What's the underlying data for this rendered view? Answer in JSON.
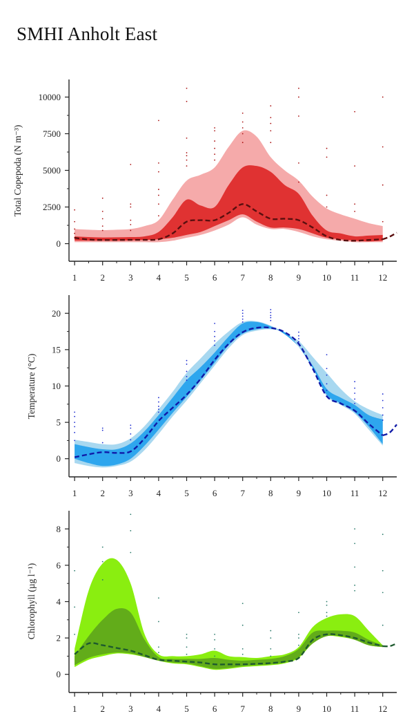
{
  "page": {
    "title": "SMHI Anholt East"
  },
  "chart_data": [
    {
      "type": "area",
      "ylabel": "Total Copepoda (N m⁻³)",
      "xlim": [
        0.8,
        12.5
      ],
      "ylim": [
        -1200,
        11200
      ],
      "x_ticks": [
        1,
        2,
        3,
        4,
        5,
        6,
        7,
        8,
        9,
        10,
        11,
        12
      ],
      "y_ticks": [
        0,
        2500,
        5000,
        7500,
        10000
      ],
      "colors": {
        "outer": "#f5aaaa",
        "inner": "#e03232",
        "line": "#5a0f0f",
        "points": "#aa1111"
      },
      "series": [
        {
          "x": [
            1,
            1.5,
            2,
            2.5,
            3,
            3.5,
            4,
            4.5,
            5,
            5.5,
            6,
            6.5,
            7,
            7.5,
            8,
            8.5,
            9,
            9.5,
            10,
            10.5,
            11,
            11.5,
            12
          ],
          "outer_upper": [
            1000,
            950,
            920,
            950,
            1000,
            1200,
            1600,
            3000,
            4300,
            4700,
            5200,
            6600,
            7700,
            7300,
            5900,
            5000,
            4300,
            3200,
            2400,
            2000,
            1700,
            1400,
            1200
          ],
          "inner_upper": [
            500,
            450,
            420,
            430,
            450,
            500,
            800,
            1800,
            3000,
            2600,
            2500,
            4000,
            5200,
            5300,
            4900,
            4000,
            3400,
            1900,
            900,
            700,
            500,
            550,
            600
          ],
          "inner_lower": [
            200,
            200,
            200,
            200,
            220,
            250,
            300,
            400,
            600,
            800,
            1200,
            1600,
            2000,
            1500,
            1100,
            1100,
            1000,
            700,
            400,
            300,
            200,
            150,
            200
          ],
          "outer_lower": [
            100,
            100,
            100,
            100,
            100,
            100,
            100,
            200,
            400,
            600,
            900,
            1300,
            1800,
            1300,
            1000,
            1000,
            800,
            500,
            300,
            200,
            100,
            100,
            100
          ],
          "median": [
            400,
            280,
            250,
            250,
            260,
            260,
            300,
            700,
            1500,
            1600,
            1600,
            2100,
            2700,
            2200,
            1700,
            1700,
            1600,
            1100,
            500,
            250,
            200,
            250,
            300
          ]
        }
      ],
      "extension": {
        "x": [
          12,
          12.25,
          12.5
        ],
        "y": [
          300,
          480,
          750
        ]
      },
      "points": [
        [
          1,
          2300
        ],
        [
          1,
          1500
        ],
        [
          1,
          1000
        ],
        [
          1,
          700
        ],
        [
          1,
          400
        ],
        [
          2,
          3100
        ],
        [
          2,
          2200
        ],
        [
          2,
          1700
        ],
        [
          2,
          1200
        ],
        [
          2,
          900
        ],
        [
          3,
          5400
        ],
        [
          3,
          2700
        ],
        [
          3,
          2500
        ],
        [
          3,
          1600
        ],
        [
          3,
          1300
        ],
        [
          3,
          900
        ],
        [
          4,
          8400
        ],
        [
          4,
          5500
        ],
        [
          4,
          4900
        ],
        [
          4,
          3700
        ],
        [
          4,
          3300
        ],
        [
          4,
          2700
        ],
        [
          4,
          1900
        ],
        [
          5,
          10600
        ],
        [
          5,
          9700
        ],
        [
          5,
          7200
        ],
        [
          5,
          6200
        ],
        [
          5,
          6000
        ],
        [
          5,
          5700
        ],
        [
          5,
          5300
        ],
        [
          6,
          7900
        ],
        [
          6,
          7700
        ],
        [
          6,
          7000
        ],
        [
          6,
          6500
        ],
        [
          6,
          6100
        ],
        [
          6,
          5700
        ],
        [
          7,
          8900
        ],
        [
          7,
          8300
        ],
        [
          7,
          7900
        ],
        [
          7,
          7500
        ],
        [
          7,
          6900
        ],
        [
          8,
          9400
        ],
        [
          8,
          8600
        ],
        [
          8,
          8200
        ],
        [
          8,
          7700
        ],
        [
          8,
          6900
        ],
        [
          9,
          10600
        ],
        [
          9,
          10000
        ],
        [
          9,
          8700
        ],
        [
          9,
          5500
        ],
        [
          9,
          4200
        ],
        [
          10,
          6500
        ],
        [
          10,
          5900
        ],
        [
          10,
          3300
        ],
        [
          10,
          2500
        ],
        [
          11,
          9000
        ],
        [
          11,
          5300
        ],
        [
          11,
          2700
        ],
        [
          11,
          2200
        ],
        [
          12,
          10000
        ],
        [
          12,
          6600
        ],
        [
          12,
          4000
        ],
        [
          12,
          1500
        ]
      ]
    },
    {
      "type": "area",
      "ylabel": "Temperature (°C)",
      "xlim": [
        0.8,
        12.5
      ],
      "ylim": [
        -2.5,
        22.5
      ],
      "x_ticks": [
        1,
        2,
        3,
        4,
        5,
        6,
        7,
        8,
        9,
        10,
        11,
        12
      ],
      "y_ticks": [
        0,
        5,
        10,
        15,
        20
      ],
      "colors": {
        "outer": "#a8d8f0",
        "inner": "#2ea6ee",
        "line": "#101aa8",
        "points": "#1a2ad0"
      },
      "series": [
        {
          "x": [
            1,
            1.5,
            2,
            2.5,
            3,
            3.5,
            4,
            4.5,
            5,
            5.5,
            6,
            6.5,
            7,
            7.5,
            8,
            8.5,
            9,
            9.5,
            10,
            10.5,
            11,
            11.5,
            12
          ],
          "outer_upper": [
            2.6,
            2.3,
            2.0,
            2.0,
            2.8,
            4.5,
            6.8,
            9.2,
            11.8,
            13.8,
            15.8,
            17.5,
            18.8,
            18.9,
            18.3,
            17.3,
            16.2,
            14.0,
            11.8,
            9.6,
            7.9,
            6.8,
            6.0
          ],
          "inner_upper": [
            2.0,
            1.6,
            1.3,
            1.3,
            2.1,
            3.8,
            6.0,
            8.4,
            10.8,
            12.6,
            14.6,
            16.8,
            18.6,
            18.8,
            18.2,
            17.1,
            15.4,
            12.8,
            9.6,
            8.4,
            7.4,
            6.0,
            5.4
          ],
          "inner_lower": [
            0.0,
            -0.6,
            -1.0,
            -0.8,
            0.0,
            1.8,
            4.0,
            6.3,
            8.5,
            10.8,
            13.2,
            15.6,
            17.2,
            17.8,
            17.9,
            17.4,
            15.4,
            12.5,
            8.8,
            7.6,
            6.4,
            4.4,
            2.0
          ],
          "outer_lower": [
            -0.6,
            -1.0,
            -1.2,
            -1.0,
            -0.4,
            1.2,
            3.4,
            5.8,
            8.0,
            10.4,
            12.8,
            15.2,
            17.0,
            17.6,
            17.8,
            17.3,
            15.4,
            12.4,
            8.6,
            7.4,
            6.2,
            4.0,
            1.8
          ],
          "median": [
            0.2,
            0.6,
            0.9,
            0.8,
            1.0,
            2.8,
            5.2,
            7.0,
            8.8,
            11.0,
            13.6,
            15.8,
            17.4,
            18.0,
            18.0,
            17.4,
            15.8,
            12.4,
            8.6,
            7.6,
            6.6,
            4.8,
            3.2
          ]
        }
      ],
      "extension": {
        "x": [
          12,
          12.25,
          12.5
        ],
        "y": [
          3.2,
          3.6,
          4.7
        ]
      },
      "points": [
        [
          1,
          6.4
        ],
        [
          1,
          5.8
        ],
        [
          1,
          5.0
        ],
        [
          1,
          4.4
        ],
        [
          1,
          3.6
        ],
        [
          1,
          2.5
        ],
        [
          2,
          4.2
        ],
        [
          2,
          3.9
        ],
        [
          2,
          2.2
        ],
        [
          3,
          4.6
        ],
        [
          3,
          4.2
        ],
        [
          3,
          3.4
        ],
        [
          3,
          2.6
        ],
        [
          4,
          8.4
        ],
        [
          4,
          7.8
        ],
        [
          4,
          7.2
        ],
        [
          4,
          6.8
        ],
        [
          4,
          6.4
        ],
        [
          5,
          13.5
        ],
        [
          5,
          13.0
        ],
        [
          5,
          12.0
        ],
        [
          5,
          11.3
        ],
        [
          5,
          10.8
        ],
        [
          6,
          18.6
        ],
        [
          6,
          17.5
        ],
        [
          6,
          16.8
        ],
        [
          6,
          16.2
        ],
        [
          6,
          15.6
        ],
        [
          7,
          20.4
        ],
        [
          7,
          20.0
        ],
        [
          7,
          19.6
        ],
        [
          7,
          19.2
        ],
        [
          7,
          18.8
        ],
        [
          8,
          20.5
        ],
        [
          8,
          20.1
        ],
        [
          8,
          19.7
        ],
        [
          8,
          19.4
        ],
        [
          8,
          19.0
        ],
        [
          9,
          17.4
        ],
        [
          9,
          16.9
        ],
        [
          9,
          16.5
        ],
        [
          9,
          16.1
        ],
        [
          9,
          15.8
        ],
        [
          10,
          14.3
        ],
        [
          10,
          12.4
        ],
        [
          10,
          11.5
        ],
        [
          10,
          10.3
        ],
        [
          10,
          9.4
        ],
        [
          11,
          10.6
        ],
        [
          11,
          9.7
        ],
        [
          11,
          9.0
        ],
        [
          11,
          8.2
        ],
        [
          11,
          7.6
        ],
        [
          12,
          8.9
        ],
        [
          12,
          8.0
        ],
        [
          12,
          7.0
        ],
        [
          12,
          6.0
        ],
        [
          12,
          5.3
        ]
      ]
    },
    {
      "type": "area",
      "ylabel": "Chlorophyll (µg l⁻¹)",
      "xlim": [
        0.8,
        12.5
      ],
      "ylim": [
        -1.0,
        9.0
      ],
      "x_ticks": [
        1,
        2,
        3,
        4,
        5,
        6,
        7,
        8,
        9,
        10,
        11,
        12
      ],
      "y_ticks": [
        0,
        2,
        4,
        6,
        8
      ],
      "colors": {
        "outer": "#8aee10",
        "inner": "#62ac1a",
        "line": "#1e5a2e",
        "points": "#2a7a6a"
      },
      "series": [
        {
          "x": [
            1,
            1.5,
            2,
            2.5,
            3,
            3.5,
            4,
            4.5,
            5,
            5.5,
            6,
            6.5,
            7,
            7.5,
            8,
            8.5,
            9,
            9.5,
            10,
            10.5,
            11,
            11.5,
            12
          ],
          "outer_upper": [
            1.4,
            4.6,
            6.1,
            6.3,
            5.0,
            2.2,
            1.1,
            1.0,
            1.0,
            1.1,
            1.3,
            1.0,
            0.95,
            0.9,
            1.0,
            1.1,
            1.5,
            2.6,
            3.1,
            3.3,
            3.2,
            2.4,
            1.6
          ],
          "inner_upper": [
            1.0,
            2.1,
            3.0,
            3.6,
            3.4,
            1.9,
            0.95,
            0.85,
            0.85,
            0.85,
            0.9,
            0.8,
            0.75,
            0.8,
            0.85,
            1.0,
            1.4,
            2.3,
            2.4,
            2.4,
            2.3,
            1.9,
            1.6
          ],
          "inner_lower": [
            0.5,
            0.9,
            1.1,
            1.2,
            1.15,
            0.95,
            0.75,
            0.65,
            0.6,
            0.45,
            0.3,
            0.35,
            0.45,
            0.5,
            0.55,
            0.65,
            0.95,
            1.7,
            2.1,
            2.1,
            1.9,
            1.6,
            1.5
          ],
          "outer_lower": [
            0.4,
            0.8,
            1.0,
            1.15,
            1.1,
            0.95,
            0.75,
            0.6,
            0.55,
            0.4,
            0.25,
            0.3,
            0.4,
            0.45,
            0.5,
            0.6,
            0.9,
            1.7,
            2.1,
            2.05,
            1.9,
            1.6,
            1.5
          ],
          "median": [
            1.1,
            1.7,
            1.6,
            1.45,
            1.3,
            1.05,
            0.8,
            0.75,
            0.7,
            0.65,
            0.55,
            0.55,
            0.55,
            0.58,
            0.62,
            0.7,
            0.9,
            1.9,
            2.2,
            2.15,
            2.0,
            1.75,
            1.55
          ]
        }
      ],
      "extension": {
        "x": [
          12,
          12.25,
          12.5
        ],
        "y": [
          1.55,
          1.55,
          1.7
        ]
      },
      "points": [
        [
          1,
          5.7
        ],
        [
          1,
          3.7
        ],
        [
          1,
          2.2
        ],
        [
          2,
          7.0
        ],
        [
          2,
          6.2
        ],
        [
          2,
          5.2
        ],
        [
          3,
          8.8
        ],
        [
          3,
          7.9
        ],
        [
          3,
          6.7
        ],
        [
          4,
          4.2
        ],
        [
          4,
          2.9
        ],
        [
          4,
          1.5
        ],
        [
          4,
          1.2
        ],
        [
          5,
          2.2
        ],
        [
          5,
          2.0
        ],
        [
          5,
          1.5
        ],
        [
          5,
          1.1
        ],
        [
          6,
          2.2
        ],
        [
          6,
          1.9
        ],
        [
          6,
          1.4
        ],
        [
          6,
          1.0
        ],
        [
          7,
          3.9
        ],
        [
          7,
          2.7
        ],
        [
          7,
          1.4
        ],
        [
          7,
          1.1
        ],
        [
          8,
          2.4
        ],
        [
          8,
          2.0
        ],
        [
          8,
          1.4
        ],
        [
          8,
          1.0
        ],
        [
          9,
          3.4
        ],
        [
          9,
          2.2
        ],
        [
          9,
          2.0
        ],
        [
          9,
          1.6
        ],
        [
          10,
          4.0
        ],
        [
          10,
          3.8
        ],
        [
          10,
          3.4
        ],
        [
          10,
          3.2
        ],
        [
          11,
          8.0
        ],
        [
          11,
          7.2
        ],
        [
          11,
          5.9
        ],
        [
          11,
          4.9
        ],
        [
          11,
          4.6
        ],
        [
          12,
          7.7
        ],
        [
          12,
          5.7
        ],
        [
          12,
          4.5
        ],
        [
          12,
          2.7
        ]
      ]
    }
  ]
}
